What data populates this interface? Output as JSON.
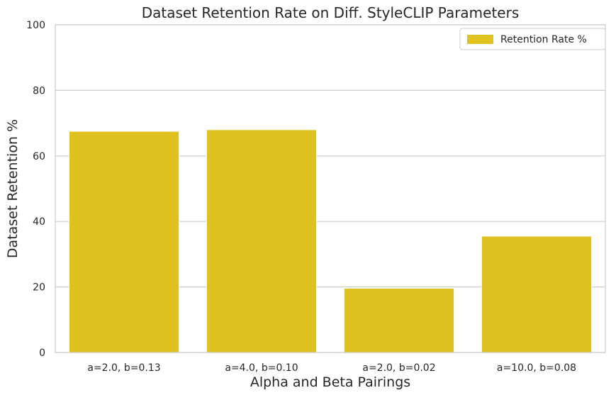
{
  "chart_data": {
    "type": "bar",
    "title": "Dataset Retention Rate on Diff. StyleCLIP Parameters",
    "xlabel": "Alpha and Beta Pairings",
    "ylabel": "Dataset Retention %",
    "categories": [
      "a=2.0, b=0.13",
      "a=4.0, b=0.10",
      "a=2.0, b=0.02",
      "a=10.0, b=0.08"
    ],
    "series": [
      {
        "name": "Retention Rate %",
        "values": [
          67.5,
          68.0,
          19.6,
          35.5
        ],
        "color": "#dfc220"
      }
    ],
    "ylim": [
      0,
      100
    ],
    "yticks": [
      0,
      20,
      40,
      60,
      80,
      100
    ],
    "grid": "y",
    "legend_position": "top-right",
    "colors": {
      "grid": "#cccccc",
      "spine": "#cccccc",
      "text": "#262626"
    }
  }
}
